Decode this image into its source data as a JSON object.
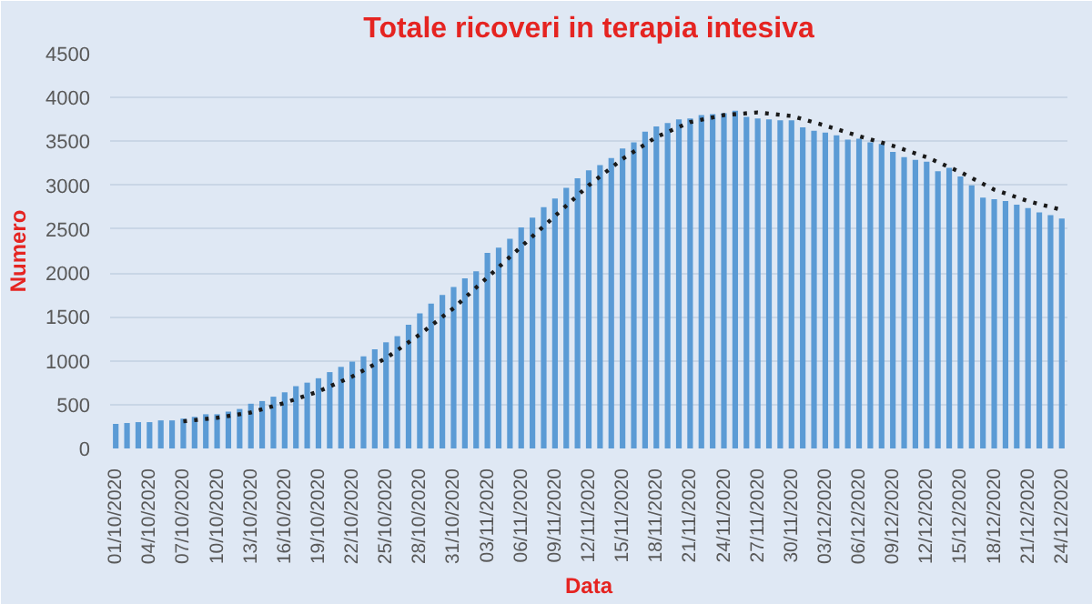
{
  "chart_data": {
    "type": "bar",
    "title": "Totale ricoveri in terapia intesiva",
    "xlabel": "Data",
    "ylabel": "Numero",
    "x": [
      "2020-10-01",
      "2020-10-02",
      "2020-10-03",
      "2020-10-04",
      "2020-10-05",
      "2020-10-06",
      "2020-10-07",
      "2020-10-08",
      "2020-10-09",
      "2020-10-10",
      "2020-10-11",
      "2020-10-12",
      "2020-10-13",
      "2020-10-14",
      "2020-10-15",
      "2020-10-16",
      "2020-10-17",
      "2020-10-18",
      "2020-10-19",
      "2020-10-20",
      "2020-10-21",
      "2020-10-22",
      "2020-10-23",
      "2020-10-24",
      "2020-10-25",
      "2020-10-26",
      "2020-10-27",
      "2020-10-28",
      "2020-10-29",
      "2020-10-30",
      "2020-10-31",
      "2020-11-01",
      "2020-11-02",
      "2020-11-03",
      "2020-11-04",
      "2020-11-05",
      "2020-11-06",
      "2020-11-07",
      "2020-11-08",
      "2020-11-09",
      "2020-11-10",
      "2020-11-11",
      "2020-11-12",
      "2020-11-13",
      "2020-11-14",
      "2020-11-15",
      "2020-11-16",
      "2020-11-17",
      "2020-11-18",
      "2020-11-19",
      "2020-11-20",
      "2020-11-21",
      "2020-11-22",
      "2020-11-23",
      "2020-11-24",
      "2020-11-25",
      "2020-11-26",
      "2020-11-27",
      "2020-11-28",
      "2020-11-29",
      "2020-11-30",
      "2020-12-01",
      "2020-12-02",
      "2020-12-03",
      "2020-12-04",
      "2020-12-05",
      "2020-12-06",
      "2020-12-07",
      "2020-12-08",
      "2020-12-09",
      "2020-12-10",
      "2020-12-11",
      "2020-12-12",
      "2020-12-13",
      "2020-12-14",
      "2020-12-15",
      "2020-12-16",
      "2020-12-17",
      "2020-12-18",
      "2020-12-19",
      "2020-12-20",
      "2020-12-21",
      "2020-12-22",
      "2020-12-23",
      "2020-12-24"
    ],
    "series": [
      {
        "color": "#5b9bd5",
        "values": [
          280,
          290,
          300,
          300,
          320,
          320,
          340,
          360,
          390,
          390,
          420,
          450,
          510,
          540,
          590,
          640,
          710,
          750,
          800,
          870,
          930,
          990,
          1050,
          1130,
          1210,
          1280,
          1410,
          1540,
          1650,
          1750,
          1840,
          1940,
          2020,
          2230,
          2290,
          2390,
          2520,
          2630,
          2750,
          2850,
          2970,
          3080,
          3170,
          3230,
          3310,
          3420,
          3490,
          3610,
          3670,
          3710,
          3750,
          3760,
          3800,
          3810,
          3820,
          3850,
          3780,
          3760,
          3750,
          3740,
          3740,
          3660,
          3620,
          3600,
          3570,
          3520,
          3530,
          3490,
          3470,
          3380,
          3320,
          3290,
          3270,
          3160,
          3200,
          3100,
          3000,
          2860,
          2840,
          2820,
          2780,
          2740,
          2690,
          2660,
          2620
        ]
      },
      {
        "type": "line",
        "color": "#1a1a1a",
        "line_style": "dotted",
        "x": [
          "2020-10-07",
          "2020-10-10",
          "2020-10-13",
          "2020-10-16",
          "2020-10-19",
          "2020-10-22",
          "2020-10-25",
          "2020-10-28",
          "2020-10-31",
          "2020-11-03",
          "2020-11-06",
          "2020-11-09",
          "2020-11-12",
          "2020-11-15",
          "2020-11-18",
          "2020-11-21",
          "2020-11-24",
          "2020-11-27",
          "2020-11-30",
          "2020-12-03",
          "2020-12-06",
          "2020-12-09",
          "2020-12-12",
          "2020-12-15",
          "2020-12-18",
          "2020-12-21",
          "2020-12-24"
        ],
        "values": [
          310,
          350,
          410,
          520,
          650,
          820,
          1030,
          1300,
          1600,
          1950,
          2300,
          2650,
          3000,
          3300,
          3550,
          3720,
          3800,
          3830,
          3790,
          3680,
          3560,
          3450,
          3320,
          3150,
          2950,
          2820,
          2720
        ]
      }
    ],
    "ylim": [
      0,
      4500
    ],
    "yticks": [
      0,
      500,
      1000,
      1500,
      2000,
      2500,
      3000,
      3500,
      4000,
      4500
    ],
    "xlim": [
      "2020-09-30T12:00",
      "2020-12-24T12:00"
    ],
    "xticks": [
      {
        "value": "2020-10-01",
        "label": "01/10/2020"
      },
      {
        "value": "2020-10-04",
        "label": "04/10/2020"
      },
      {
        "value": "2020-10-07",
        "label": "07/10/2020"
      },
      {
        "value": "2020-10-10",
        "label": "10/10/2020"
      },
      {
        "value": "2020-10-13",
        "label": "13/10/2020"
      },
      {
        "value": "2020-10-16",
        "label": "16/10/2020"
      },
      {
        "value": "2020-10-19",
        "label": "19/10/2020"
      },
      {
        "value": "2020-10-22",
        "label": "22/10/2020"
      },
      {
        "value": "2020-10-25",
        "label": "25/10/2020"
      },
      {
        "value": "2020-10-28",
        "label": "28/10/2020"
      },
      {
        "value": "2020-10-31",
        "label": "31/10/2020"
      },
      {
        "value": "2020-11-03",
        "label": "03/11/2020"
      },
      {
        "value": "2020-11-06",
        "label": "06/11/2020"
      },
      {
        "value": "2020-11-09",
        "label": "09/11/2020"
      },
      {
        "value": "2020-11-12",
        "label": "12/11/2020"
      },
      {
        "value": "2020-11-15",
        "label": "15/11/2020"
      },
      {
        "value": "2020-11-18",
        "label": "18/11/2020"
      },
      {
        "value": "2020-11-21",
        "label": "21/11/2020"
      },
      {
        "value": "2020-11-24",
        "label": "24/11/2020"
      },
      {
        "value": "2020-11-27",
        "label": "27/11/2020"
      },
      {
        "value": "2020-11-30",
        "label": "30/11/2020"
      },
      {
        "value": "2020-12-03",
        "label": "03/12/2020"
      },
      {
        "value": "2020-12-06",
        "label": "06/12/2020"
      },
      {
        "value": "2020-12-09",
        "label": "09/12/2020"
      },
      {
        "value": "2020-12-12",
        "label": "12/12/2020"
      },
      {
        "value": "2020-12-15",
        "label": "15/12/2020"
      },
      {
        "value": "2020-12-18",
        "label": "18/12/2020"
      },
      {
        "value": "2020-12-21",
        "label": "21/12/2020"
      },
      {
        "value": "2020-12-24",
        "label": "24/12/2020"
      }
    ],
    "grid": "y"
  }
}
